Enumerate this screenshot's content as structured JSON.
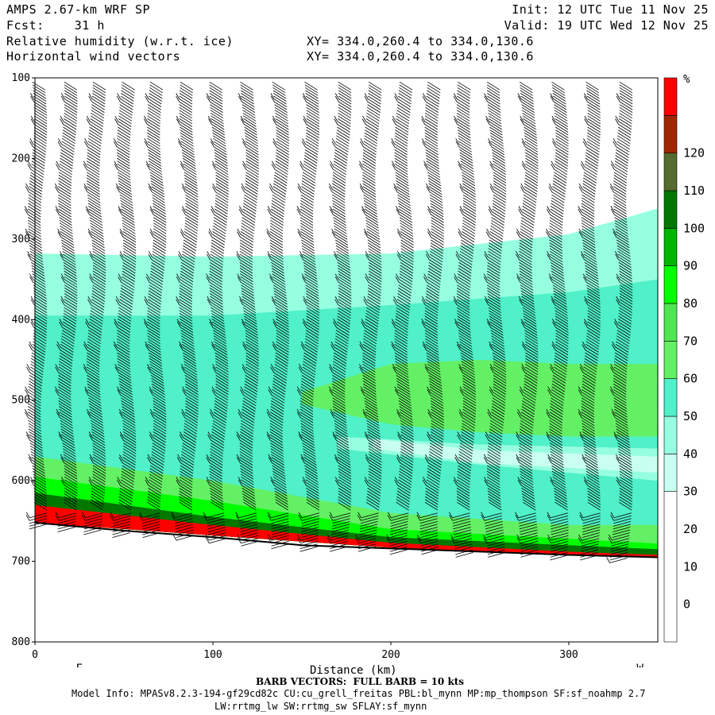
{
  "header": {
    "line1_left": "AMPS 2.67-km WRF SP",
    "line2_left": "Fcst:    31 h",
    "line3_left": "Relative humidity (w.r.t. ice)",
    "line4_left": "Horizontal wind vectors",
    "line1_right": "Init: 12 UTC Tue 11 Nov 25",
    "line2_right": "Valid: 19 UTC Wed 12 Nov 25",
    "line3_right": "XY= 334.0,260.4 to 334.0,130.6",
    "line4_right": "XY= 334.0,260.4 to 334.0,130.6"
  },
  "footer": {
    "barb_note": "BARB VECTORS:  FULL BARB = 10 kts",
    "model_info": "Model Info: MPASv8.2.3-194-gf29cd82c CU:cu_grell_freitas PBL:bl_mynn MP:mp_thompson SF:sf_noahmp 2.7",
    "model_info2": "LW:rrtmg_lw SW:rrtmg_sw SFLAY:sf_mynn"
  },
  "chart_data": {
    "type": "heatmap",
    "title": "Relative humidity (w.r.t. ice)",
    "xlabel": "Distance (km)",
    "ylabel": "",
    "xlim": [
      0,
      350
    ],
    "ylim": [
      800,
      100
    ],
    "x_ticks": [
      0,
      100,
      200,
      300
    ],
    "y_ticks": [
      100,
      200,
      300,
      400,
      500,
      600,
      700,
      800
    ],
    "x_end_labels": {
      "left": "E",
      "right": "W"
    },
    "colorbar": {
      "unit": "%",
      "tick_labels": [
        0,
        10,
        20,
        30,
        40,
        50,
        60,
        70,
        80,
        90,
        100,
        110,
        120
      ],
      "levels": [
        {
          "from": -10,
          "to": 30,
          "color": "#ffffff"
        },
        {
          "from": 30,
          "to": 40,
          "color": "#c8fff0"
        },
        {
          "from": 40,
          "to": 50,
          "color": "#96ffe0"
        },
        {
          "from": 50,
          "to": 60,
          "color": "#50f0c8"
        },
        {
          "from": 60,
          "to": 70,
          "color": "#64f064"
        },
        {
          "from": 70,
          "to": 80,
          "color": "#50e650"
        },
        {
          "from": 80,
          "to": 90,
          "color": "#00ff00"
        },
        {
          "from": 90,
          "to": 100,
          "color": "#00b400"
        },
        {
          "from": 100,
          "to": 110,
          "color": "#007800"
        },
        {
          "from": 110,
          "to": 120,
          "color": "#556b2f"
        },
        {
          "from": 120,
          "to": 130,
          "color": "#a02800"
        },
        {
          "from": 130,
          "to": 140,
          "color": "#ff0000"
        }
      ]
    },
    "terrain_pressure": [
      {
        "x": 0,
        "p": 652
      },
      {
        "x": 50,
        "p": 662
      },
      {
        "x": 100,
        "p": 670
      },
      {
        "x": 150,
        "p": 680
      },
      {
        "x": 200,
        "p": 684
      },
      {
        "x": 250,
        "p": 688
      },
      {
        "x": 300,
        "p": 692
      },
      {
        "x": 350,
        "p": 695
      }
    ],
    "rh_bands": [
      {
        "level": 40,
        "top": [
          [
            0,
            318
          ],
          [
            100,
            322
          ],
          [
            200,
            318
          ],
          [
            300,
            294
          ],
          [
            350,
            262
          ]
        ],
        "bottom": [
          [
            0,
            652
          ],
          [
            100,
            668
          ],
          [
            200,
            683
          ],
          [
            300,
            692
          ],
          [
            350,
            695
          ]
        ]
      },
      {
        "level": 50,
        "top": [
          [
            0,
            395
          ],
          [
            100,
            395
          ],
          [
            200,
            382
          ],
          [
            300,
            366
          ],
          [
            350,
            350
          ]
        ],
        "bottom": [
          [
            0,
            652
          ],
          [
            100,
            668
          ],
          [
            200,
            683
          ],
          [
            300,
            692
          ],
          [
            350,
            695
          ]
        ]
      },
      {
        "level": 60,
        "top": [
          [
            150,
            490
          ],
          [
            200,
            455
          ],
          [
            250,
            450
          ],
          [
            300,
            455
          ],
          [
            350,
            455
          ]
        ],
        "bottom": [
          [
            150,
            505
          ],
          [
            200,
            530
          ],
          [
            250,
            540
          ],
          [
            300,
            545
          ],
          [
            350,
            545
          ]
        ]
      },
      {
        "level": 40,
        "top": [
          [
            170,
            545
          ],
          [
            250,
            555
          ],
          [
            350,
            560
          ]
        ],
        "bottom": [
          [
            170,
            560
          ],
          [
            250,
            580
          ],
          [
            350,
            600
          ]
        ]
      },
      {
        "level": 30,
        "top": [
          [
            190,
            548
          ],
          [
            250,
            562
          ],
          [
            350,
            570
          ]
        ],
        "bottom": [
          [
            190,
            560
          ],
          [
            250,
            578
          ],
          [
            350,
            590
          ]
        ]
      },
      {
        "level": 60,
        "top": [
          [
            0,
            570
          ],
          [
            100,
            600
          ],
          [
            200,
            640
          ],
          [
            300,
            655
          ],
          [
            350,
            655
          ]
        ],
        "bottom": [
          [
            0,
            652
          ],
          [
            100,
            668
          ],
          [
            200,
            683
          ],
          [
            300,
            692
          ],
          [
            350,
            695
          ]
        ]
      },
      {
        "level": 80,
        "top": [
          [
            0,
            595
          ],
          [
            100,
            625
          ],
          [
            200,
            660
          ],
          [
            300,
            672
          ],
          [
            350,
            678
          ]
        ],
        "bottom": [
          [
            0,
            652
          ],
          [
            100,
            668
          ],
          [
            200,
            683
          ],
          [
            300,
            692
          ],
          [
            350,
            695
          ]
        ]
      },
      {
        "level": 100,
        "top": [
          [
            0,
            615
          ],
          [
            100,
            645
          ],
          [
            200,
            670
          ],
          [
            300,
            680
          ],
          [
            350,
            685
          ]
        ],
        "bottom": [
          [
            0,
            652
          ],
          [
            100,
            668
          ],
          [
            200,
            683
          ],
          [
            300,
            692
          ],
          [
            350,
            695
          ]
        ]
      },
      {
        "level": 130,
        "top": [
          [
            0,
            630
          ],
          [
            100,
            655
          ],
          [
            200,
            677
          ],
          [
            300,
            688
          ],
          [
            350,
            692
          ]
        ],
        "bottom": [
          [
            0,
            652
          ],
          [
            100,
            668
          ],
          [
            200,
            683
          ],
          [
            300,
            692
          ],
          [
            350,
            695
          ]
        ]
      }
    ],
    "wind_barb_columns_km": [
      5,
      22,
      38,
      55,
      72,
      90,
      107,
      124,
      141,
      158,
      176,
      193,
      211,
      228,
      246,
      263,
      281,
      298,
      316,
      334
    ]
  }
}
